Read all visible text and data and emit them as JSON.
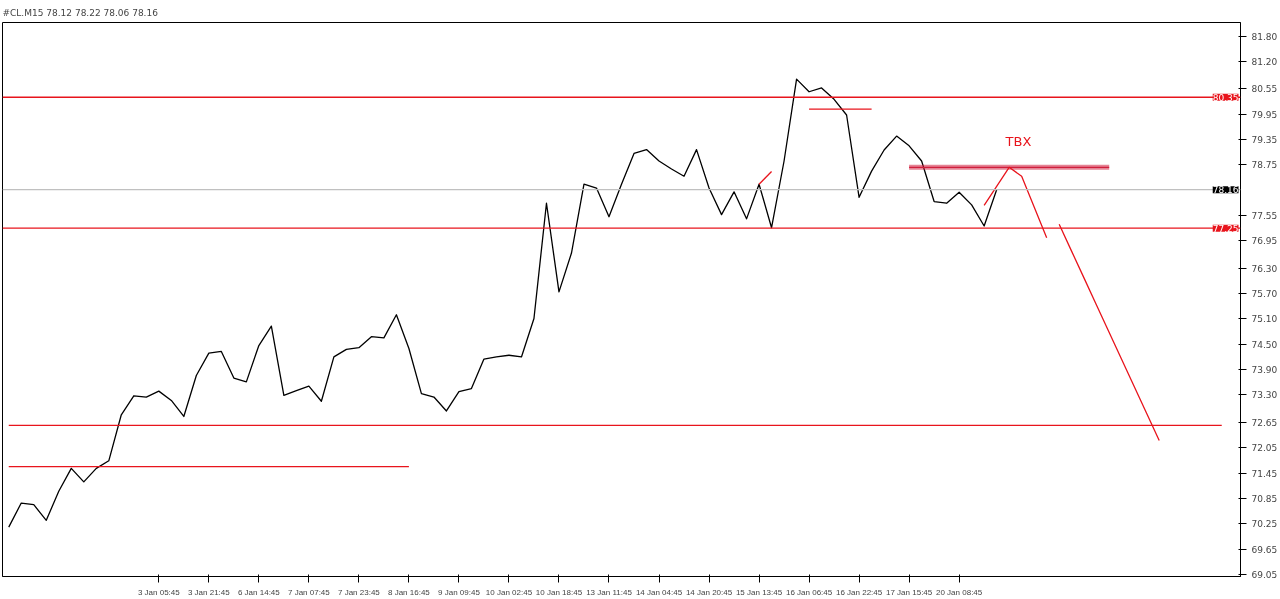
{
  "chart_data": {
    "type": "line",
    "title": "#CL.M15  78.12 78.22 78.06 78.16",
    "categories": [
      null,
      null,
      null,
      null,
      null,
      null,
      null,
      null,
      null,
      null,
      null,
      null,
      "3 Jan 05:45",
      null,
      null,
      null,
      "3 Jan 21:45",
      null,
      null,
      null,
      "6 Jan 14:45",
      null,
      null,
      null,
      "7 Jan 07:45",
      null,
      null,
      null,
      "7 Jan 23:45",
      null,
      null,
      null,
      "8 Jan 16:45",
      null,
      null,
      null,
      "9 Jan 09:45",
      null,
      null,
      null,
      "10 Jan 02:45",
      null,
      null,
      null,
      "10 Jan 18:45",
      null,
      null,
      null,
      "13 Jan 11:45",
      null,
      null,
      null,
      "14 Jan 04:45",
      null,
      null,
      null,
      "14 Jan 20:45",
      null,
      null,
      null,
      "15 Jan 13:45",
      null,
      null,
      null,
      "16 Jan 06:45",
      null,
      null,
      null,
      "16 Jan 22:45",
      null,
      null,
      null,
      "17 Jan 15:45",
      null,
      null,
      null,
      "20 Jan 08:45",
      null,
      null,
      null,
      null,
      null,
      null,
      null,
      null,
      null,
      null,
      null,
      null,
      null,
      null,
      null,
      null,
      null,
      null,
      null,
      null,
      null,
      null
    ],
    "ylim": [
      69.0,
      82.12
    ],
    "yticks": [
      69.05,
      69.65,
      70.25,
      70.85,
      71.45,
      72.05,
      72.65,
      {
        "value": 73.3,
        "label": "73.30"
      },
      {
        "value": 73.9,
        "label": "73.90"
      },
      {
        "value": 74.5,
        "label": "74.50"
      },
      {
        "value": 75.1,
        "label": "75.10"
      },
      {
        "value": 75.7,
        "label": "75.70"
      },
      {
        "value": 76.3,
        "label": "76.30"
      },
      76.95,
      77.55,
      78.75,
      79.35,
      79.95,
      80.55,
      {
        "value": 81.2,
        "label": "81.20"
      },
      {
        "value": 81.8,
        "label": "81.80"
      }
    ],
    "series": [
      {
        "color": "#000000",
        "values": [
          70.17,
          70.74,
          70.7,
          70.33,
          71.02,
          71.56,
          71.24,
          71.56,
          71.74,
          72.83,
          73.28,
          73.25,
          73.39,
          73.17,
          72.79,
          73.76,
          74.29,
          74.33,
          73.7,
          73.61,
          74.47,
          74.93,
          73.29,
          73.4,
          73.51,
          73.15,
          74.2,
          74.38,
          74.42,
          74.68,
          74.65,
          75.2,
          74.4,
          73.33,
          73.25,
          72.92,
          73.38,
          73.45,
          74.15,
          74.2,
          74.24,
          74.2,
          75.11,
          77.84,
          75.74,
          76.66,
          78.29,
          78.2,
          77.52,
          78.29,
          79.02,
          79.11,
          78.84,
          78.65,
          78.48,
          79.11,
          78.2,
          77.57,
          78.11,
          77.47,
          78.29,
          77.26,
          78.84,
          80.78,
          80.48,
          80.57,
          80.3,
          79.93,
          77.98,
          78.6,
          79.1,
          79.43,
          79.2,
          78.84,
          77.88,
          77.84,
          78.1,
          77.8,
          77.3,
          78.16,
          null,
          null,
          null,
          null,
          null,
          null,
          null,
          null,
          null,
          null,
          null,
          null,
          null,
          null,
          null,
          null,
          null,
          null,
          null
        ]
      },
      {
        "color": "#e8141c",
        "values": [
          71.6,
          71.6,
          71.6,
          71.6,
          71.6,
          71.6,
          71.6,
          71.6,
          71.6,
          71.6,
          71.6,
          71.6,
          71.6,
          71.6,
          71.6,
          71.6,
          71.6,
          71.6,
          71.6,
          71.6,
          71.6,
          71.6,
          71.6,
          71.6,
          71.6,
          71.6,
          71.6,
          71.6,
          71.6,
          71.6,
          71.6,
          71.6,
          71.6,
          null,
          null,
          null,
          null,
          null,
          null,
          null,
          null,
          null,
          null,
          null,
          null,
          null,
          null,
          null,
          null,
          null,
          null,
          null,
          null,
          null,
          null,
          null,
          null,
          null,
          null,
          null,
          null,
          null,
          null,
          null,
          null,
          null,
          null,
          null,
          null,
          null,
          null,
          null,
          null,
          null,
          null,
          null,
          null,
          null,
          null,
          null,
          null,
          null,
          null,
          null,
          null,
          null,
          null,
          null,
          null,
          null,
          null,
          null,
          null,
          null,
          null,
          null,
          null,
          null,
          null
        ]
      },
      {
        "color": "#e8141c",
        "values": [
          72.58,
          72.58,
          72.58,
          72.58,
          72.58,
          72.58,
          72.58,
          72.58,
          72.58,
          72.58,
          72.58,
          72.58,
          72.58,
          72.58,
          72.58,
          72.58,
          72.58,
          72.58,
          72.58,
          72.58,
          72.58,
          72.58,
          72.58,
          72.58,
          72.58,
          72.58,
          72.58,
          72.58,
          72.58,
          72.58,
          72.58,
          72.58,
          72.58,
          72.58,
          72.58,
          72.58,
          72.58,
          72.58,
          72.58,
          72.58,
          72.58,
          72.58,
          72.58,
          72.58,
          72.58,
          72.58,
          72.58,
          72.58,
          72.58,
          72.58,
          72.58,
          72.58,
          72.58,
          72.58,
          72.58,
          72.58,
          72.58,
          72.58,
          72.58,
          72.58,
          72.58,
          72.58,
          72.58,
          72.58,
          72.58,
          72.58,
          72.58,
          72.58,
          72.58,
          72.58,
          72.58,
          72.58,
          72.58,
          72.58,
          72.58,
          72.58,
          72.58,
          72.58,
          72.58,
          72.58,
          72.58,
          72.58,
          72.58,
          72.58,
          72.58,
          72.58,
          72.58,
          72.58,
          72.58,
          72.58,
          72.58,
          72.58,
          72.58,
          72.58,
          72.58,
          72.58,
          72.58,
          72.58,
          null
        ]
      },
      {
        "color": "#e8141c",
        "values": [
          null,
          null,
          null,
          null,
          null,
          null,
          null,
          null,
          null,
          null,
          null,
          null,
          null,
          null,
          null,
          null,
          null,
          null,
          null,
          null,
          null,
          null,
          null,
          null,
          null,
          null,
          null,
          null,
          null,
          null,
          null,
          null,
          null,
          null,
          null,
          null,
          null,
          null,
          null,
          null,
          null,
          null,
          null,
          null,
          null,
          null,
          null,
          null,
          null,
          null,
          null,
          null,
          null,
          null,
          null,
          null,
          null,
          null,
          null,
          null,
          null,
          null,
          null,
          null,
          80.07,
          80.07,
          80.07,
          80.07,
          80.07,
          80.07,
          null,
          null,
          null,
          null,
          null,
          null,
          null,
          null,
          null,
          null,
          null,
          null,
          null,
          null,
          null,
          null,
          null,
          null,
          null,
          null,
          null,
          null,
          null,
          null,
          null,
          null,
          null,
          null,
          null
        ]
      },
      {
        "color": "#e8141c",
        "values": [
          null,
          null,
          null,
          null,
          null,
          null,
          null,
          null,
          null,
          null,
          null,
          null,
          null,
          null,
          null,
          null,
          null,
          null,
          null,
          null,
          null,
          null,
          null,
          null,
          null,
          null,
          null,
          null,
          null,
          null,
          null,
          null,
          null,
          null,
          null,
          null,
          null,
          null,
          null,
          null,
          null,
          null,
          null,
          null,
          null,
          null,
          null,
          null,
          null,
          null,
          null,
          null,
          null,
          null,
          null,
          null,
          null,
          null,
          null,
          null,
          78.29,
          78.59,
          null,
          null,
          null,
          null,
          null,
          null,
          null,
          null,
          null,
          null,
          null,
          null,
          null,
          null,
          null,
          null,
          null,
          null,
          null,
          null,
          null,
          null,
          null,
          null,
          null,
          null,
          null,
          null,
          null,
          null,
          null,
          null,
          null,
          null,
          null,
          null,
          null
        ]
      },
      {
        "color": "#d01e3c",
        "values": [
          null,
          null,
          null,
          null,
          null,
          null,
          null,
          null,
          null,
          null,
          null,
          null,
          null,
          null,
          null,
          null,
          null,
          null,
          null,
          null,
          null,
          null,
          null,
          null,
          null,
          null,
          null,
          null,
          null,
          null,
          null,
          null,
          null,
          null,
          null,
          null,
          null,
          null,
          null,
          null,
          null,
          null,
          null,
          null,
          null,
          null,
          null,
          null,
          null,
          null,
          null,
          null,
          null,
          null,
          null,
          null,
          null,
          null,
          null,
          null,
          null,
          null,
          null,
          null,
          null,
          null,
          null,
          null,
          null,
          null,
          null,
          null,
          78.69,
          78.69,
          78.69,
          78.69,
          78.69,
          78.69,
          78.69,
          78.69,
          78.69,
          78.69,
          78.69,
          78.69,
          78.69,
          78.69,
          78.69,
          78.69,
          78.69,
          null,
          null,
          null,
          null,
          null,
          null,
          null,
          null,
          null,
          null
        ],
        "lower": [
          null,
          null,
          null,
          null,
          null,
          null,
          null,
          null,
          null,
          null,
          null,
          null,
          null,
          null,
          null,
          null,
          null,
          null,
          null,
          null,
          null,
          null,
          null,
          null,
          null,
          null,
          null,
          null,
          null,
          null,
          null,
          null,
          null,
          null,
          null,
          null,
          null,
          null,
          null,
          null,
          null,
          null,
          null,
          null,
          null,
          null,
          null,
          null,
          null,
          null,
          null,
          null,
          null,
          null,
          null,
          null,
          null,
          null,
          null,
          null,
          null,
          null,
          null,
          null,
          null,
          null,
          null,
          null,
          null,
          null,
          null,
          null,
          78.63,
          78.63,
          78.63,
          78.63,
          78.63,
          78.63,
          78.63,
          78.63,
          78.63,
          78.63,
          78.63,
          78.63,
          78.63,
          78.63,
          78.63,
          78.63,
          78.63,
          null,
          null,
          null,
          null,
          null,
          null,
          null,
          null,
          null,
          null
        ],
        "upper": [
          null,
          null,
          null,
          null,
          null,
          null,
          null,
          null,
          null,
          null,
          null,
          null,
          null,
          null,
          null,
          null,
          null,
          null,
          null,
          null,
          null,
          null,
          null,
          null,
          null,
          null,
          null,
          null,
          null,
          null,
          null,
          null,
          null,
          null,
          null,
          null,
          null,
          null,
          null,
          null,
          null,
          null,
          null,
          null,
          null,
          null,
          null,
          null,
          null,
          null,
          null,
          null,
          null,
          null,
          null,
          null,
          null,
          null,
          null,
          null,
          null,
          null,
          null,
          null,
          null,
          null,
          null,
          null,
          null,
          null,
          null,
          null,
          78.75,
          78.75,
          78.75,
          78.75,
          78.75,
          78.75,
          78.75,
          78.75,
          78.75,
          78.75,
          78.75,
          78.75,
          78.75,
          78.75,
          78.75,
          78.75,
          78.75,
          null,
          null,
          null,
          null,
          null,
          null,
          null,
          null,
          null,
          null
        ]
      },
      {
        "color": "#e8141c",
        "values": [
          null,
          null,
          null,
          null,
          null,
          null,
          null,
          null,
          null,
          null,
          null,
          null,
          null,
          null,
          null,
          null,
          null,
          null,
          null,
          null,
          null,
          null,
          null,
          null,
          null,
          null,
          null,
          null,
          null,
          null,
          null,
          null,
          null,
          null,
          null,
          null,
          null,
          null,
          null,
          null,
          null,
          null,
          null,
          null,
          null,
          null,
          null,
          null,
          null,
          null,
          null,
          null,
          null,
          null,
          null,
          null,
          null,
          null,
          null,
          null,
          null,
          null,
          null,
          null,
          null,
          null,
          null,
          null,
          null,
          null,
          null,
          null,
          null,
          null,
          null,
          null,
          null,
          null,
          77.79,
          78.24,
          78.69,
          78.48,
          77.75,
          77.02,
          null,
          null,
          null,
          null,
          null,
          null,
          null,
          null,
          null,
          null,
          null,
          null,
          null,
          null,
          null
        ]
      },
      {
        "color": "#e8141c",
        "values": [
          null,
          null,
          null,
          null,
          null,
          null,
          null,
          null,
          null,
          null,
          null,
          null,
          null,
          null,
          null,
          null,
          null,
          null,
          null,
          null,
          null,
          null,
          null,
          null,
          null,
          null,
          null,
          null,
          null,
          null,
          null,
          null,
          null,
          null,
          null,
          null,
          null,
          null,
          null,
          null,
          null,
          null,
          null,
          null,
          null,
          null,
          null,
          null,
          null,
          null,
          null,
          null,
          null,
          null,
          null,
          null,
          null,
          null,
          null,
          null,
          null,
          null,
          null,
          null,
          null,
          null,
          null,
          null,
          null,
          null,
          null,
          null,
          null,
          null,
          null,
          null,
          null,
          null,
          null,
          null,
          null,
          null,
          null,
          null,
          77.34,
          76.7,
          76.06,
          75.42,
          74.78,
          74.14,
          73.5,
          72.86,
          72.22,
          null,
          null,
          null,
          null,
          null,
          null
        ]
      }
    ],
    "ref_lines": [
      {
        "axis": "y",
        "value": 80.35,
        "label": "80.35",
        "color": "#e8141c"
      },
      {
        "axis": "y",
        "value": 77.25,
        "label": "77.25",
        "color": "#e8141c"
      },
      {
        "axis": "y",
        "value": 78.16,
        "label": "78.16",
        "color": "#c0c0c0"
      }
    ],
    "annotations": [
      "TBX"
    ]
  }
}
